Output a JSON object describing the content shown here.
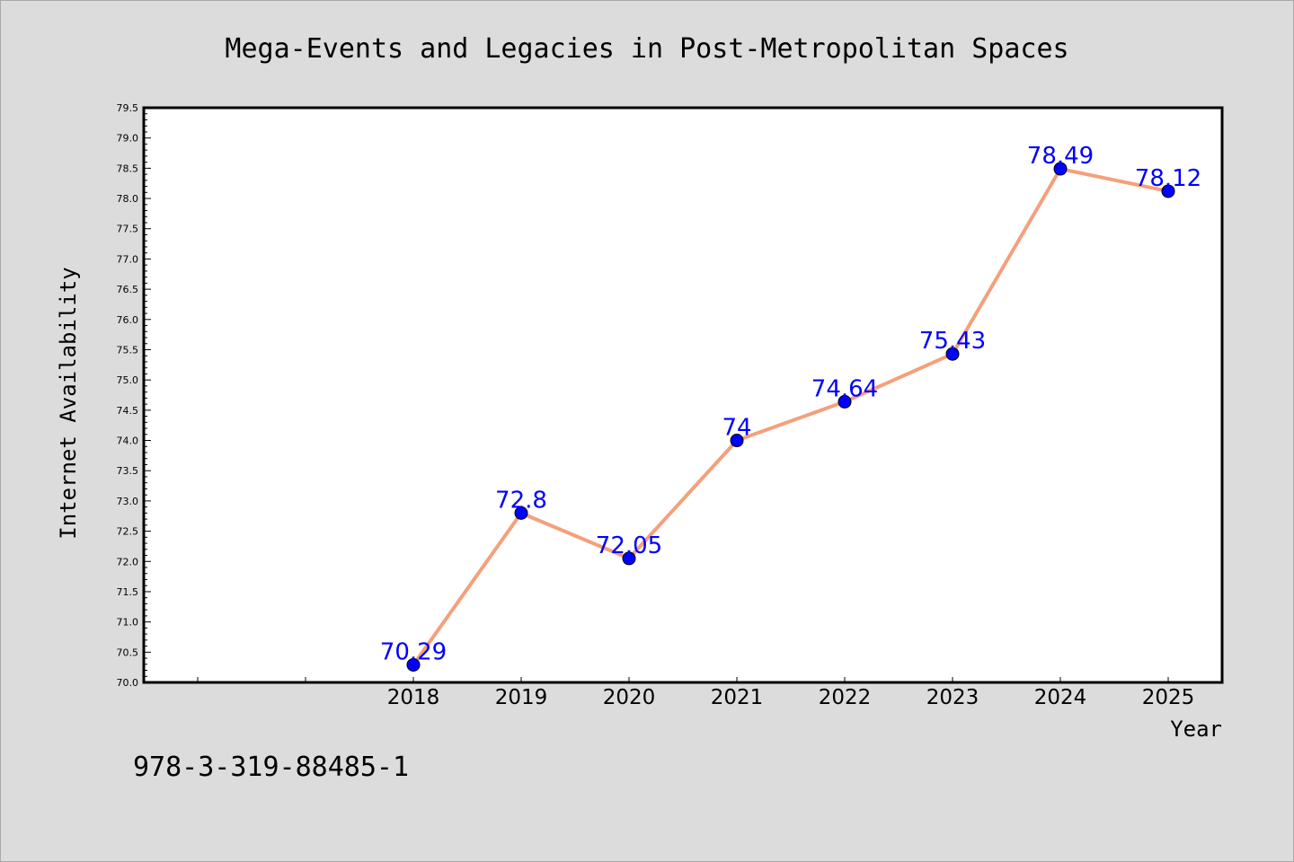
{
  "chart_data": {
    "type": "line",
    "title": "Mega-Events and Legacies in Post-Metropolitan Spaces",
    "xlabel": "Year",
    "ylabel": "Internet Availability",
    "x": [
      "2018",
      "2019",
      "2020",
      "2021",
      "2022",
      "2023",
      "2024",
      "2025"
    ],
    "series": [
      {
        "values": [
          70.29,
          72.8,
          72.05,
          74,
          74.64,
          75.43,
          78.49,
          78.12
        ],
        "data_labels": [
          "70.29",
          "72.8",
          "72.05",
          "74",
          "74.64",
          "75.43",
          "78.49",
          "78.12"
        ]
      }
    ],
    "ylim": [
      70.0,
      79.5
    ],
    "y_ticks": [
      "70.0",
      "70.5",
      "71.0",
      "71.5",
      "72.0",
      "72.5",
      "73.0",
      "73.5",
      "74.0",
      "74.5",
      "75.0",
      "75.5",
      "76.0",
      "76.5",
      "77.0",
      "77.5",
      "78.0",
      "78.5",
      "79.0",
      "79.5"
    ],
    "grid": false,
    "legend": "none",
    "colors": {
      "line": "#f4a07c",
      "marker": "#0000ff",
      "data_label": "#0000ff",
      "background": "#dcdcdc",
      "plot_background": "#ffffff"
    }
  },
  "footer_text": "978-3-319-88485-1"
}
